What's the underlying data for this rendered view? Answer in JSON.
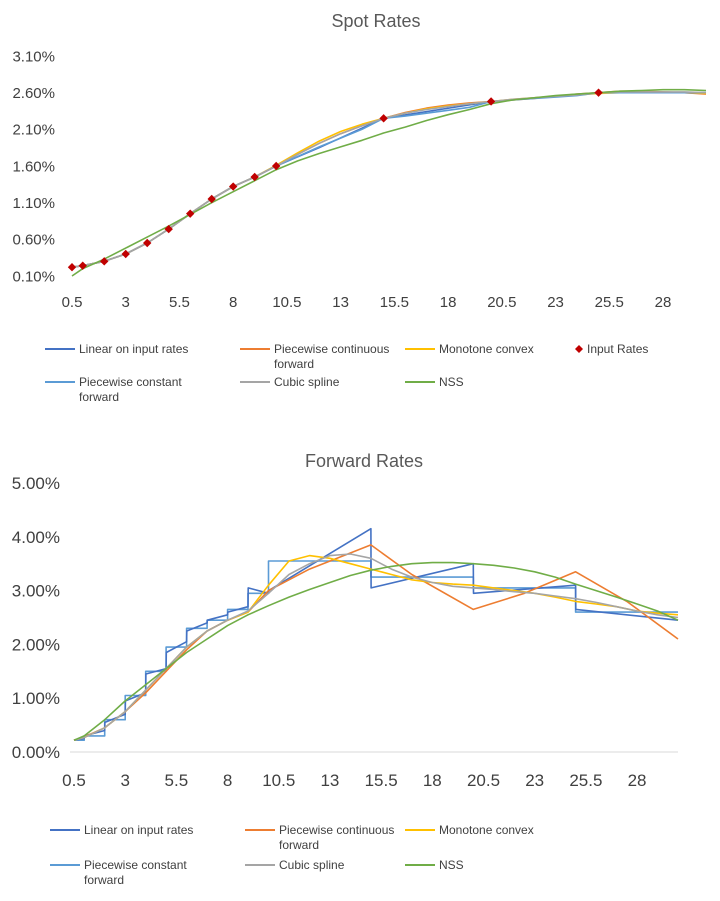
{
  "colors": {
    "linear": "#4472C4",
    "pcf": "#ED7D31",
    "monotone": "#FFC000",
    "input": "#C00000",
    "pconst": "#5B9BD5",
    "cubic": "#A5A5A5",
    "nss": "#70AD47"
  },
  "chart_data": [
    {
      "type": "line",
      "title": "Spot Rates",
      "x_tick_labels": [
        "0.5",
        "3",
        "5.5",
        "8",
        "10.5",
        "13",
        "15.5",
        "18",
        "20.5",
        "23",
        "25.5",
        "28"
      ],
      "y_tick_labels": [
        "0.10%",
        "0.60%",
        "1.10%",
        "1.60%",
        "2.10%",
        "2.60%",
        "3.10%"
      ],
      "xlim": [
        0.5,
        30
      ],
      "ylim": [
        0.1,
        3.1
      ],
      "legend": [
        {
          "key": "linear",
          "label": "Linear on input rates",
          "marker": "line"
        },
        {
          "key": "pcf",
          "label": "Piecewise continuous forward",
          "marker": "line"
        },
        {
          "key": "monotone",
          "label": "Monotone convex",
          "marker": "line"
        },
        {
          "key": "input",
          "label": "Input Rates",
          "marker": "diamond"
        },
        {
          "key": "pconst",
          "label": "Piecewise constant forward",
          "marker": "line"
        },
        {
          "key": "cubic",
          "label": "Cubic spline",
          "marker": "line"
        },
        {
          "key": "nss",
          "label": "NSS",
          "marker": "line"
        }
      ],
      "series": [
        {
          "key": "linear",
          "name": "Linear on input rates",
          "x": [
            0.5,
            1,
            2,
            3,
            4,
            5,
            6,
            7,
            8,
            9,
            10,
            12,
            15,
            20,
            25,
            30
          ],
          "y": [
            0.22,
            0.24,
            0.3,
            0.4,
            0.55,
            0.74,
            0.95,
            1.15,
            1.32,
            1.45,
            1.6,
            1.85,
            2.25,
            2.48,
            2.6,
            2.6
          ]
        },
        {
          "key": "pcf",
          "name": "Piecewise continuous forward",
          "x": [
            0.5,
            1,
            2,
            3,
            4,
            5,
            6,
            7,
            8,
            9,
            10,
            11,
            12,
            13,
            14,
            15,
            16,
            17,
            18,
            19,
            20,
            21,
            22,
            23,
            24,
            25,
            26,
            27,
            28,
            29,
            30
          ],
          "y": [
            0.22,
            0.24,
            0.3,
            0.4,
            0.55,
            0.74,
            0.95,
            1.15,
            1.32,
            1.45,
            1.6,
            1.76,
            1.91,
            2.04,
            2.15,
            2.25,
            2.33,
            2.39,
            2.43,
            2.46,
            2.48,
            2.5,
            2.52,
            2.55,
            2.58,
            2.6,
            2.62,
            2.62,
            2.61,
            2.6,
            2.58
          ]
        },
        {
          "key": "monotone",
          "name": "Monotone convex",
          "x": [
            0.5,
            1,
            2,
            3,
            4,
            5,
            6,
            7,
            8,
            9,
            10,
            11,
            12,
            13,
            14,
            15,
            16,
            17,
            18,
            19,
            20,
            21,
            22,
            23,
            24,
            25,
            26,
            27,
            28,
            29,
            30
          ],
          "y": [
            0.22,
            0.24,
            0.3,
            0.4,
            0.55,
            0.74,
            0.95,
            1.15,
            1.32,
            1.45,
            1.61,
            1.78,
            1.94,
            2.07,
            2.17,
            2.25,
            2.32,
            2.38,
            2.42,
            2.45,
            2.48,
            2.51,
            2.53,
            2.55,
            2.57,
            2.59,
            2.6,
            2.6,
            2.6,
            2.6,
            2.59
          ]
        },
        {
          "key": "pconst",
          "name": "Piecewise constant forward",
          "x": [
            0.5,
            1,
            2,
            3,
            4,
            5,
            6,
            7,
            8,
            9,
            10,
            11,
            12,
            13,
            14,
            15,
            16,
            17,
            18,
            19,
            20,
            21,
            22,
            23,
            24,
            25,
            26,
            27,
            28,
            29,
            30
          ],
          "y": [
            0.22,
            0.24,
            0.3,
            0.4,
            0.55,
            0.74,
            0.95,
            1.15,
            1.32,
            1.45,
            1.6,
            1.73,
            1.86,
            1.98,
            2.1,
            2.25,
            2.28,
            2.32,
            2.36,
            2.4,
            2.48,
            2.5,
            2.52,
            2.54,
            2.56,
            2.6,
            2.6,
            2.6,
            2.6,
            2.6,
            2.6
          ]
        },
        {
          "key": "cubic",
          "name": "Cubic spline",
          "x": [
            0.5,
            1,
            2,
            3,
            4,
            5,
            6,
            7,
            8,
            9,
            10,
            11,
            12,
            13,
            14,
            15,
            16,
            17,
            18,
            19,
            20,
            21,
            22,
            23,
            24,
            25,
            26,
            27,
            28,
            29,
            30
          ],
          "y": [
            0.22,
            0.24,
            0.3,
            0.4,
            0.55,
            0.74,
            0.95,
            1.15,
            1.32,
            1.45,
            1.6,
            1.76,
            1.91,
            2.04,
            2.15,
            2.25,
            2.32,
            2.37,
            2.41,
            2.45,
            2.48,
            2.51,
            2.53,
            2.55,
            2.57,
            2.6,
            2.61,
            2.61,
            2.61,
            2.61,
            2.6
          ]
        },
        {
          "key": "nss",
          "name": "NSS",
          "x": [
            0.5,
            1,
            2,
            3,
            4,
            5,
            6,
            7,
            8,
            9,
            10,
            11,
            12,
            13,
            14,
            15,
            16,
            17,
            18,
            19,
            20,
            21,
            22,
            23,
            24,
            25,
            26,
            27,
            28,
            29,
            30
          ],
          "y": [
            0.1,
            0.2,
            0.33,
            0.48,
            0.63,
            0.78,
            0.94,
            1.1,
            1.25,
            1.4,
            1.55,
            1.67,
            1.77,
            1.86,
            1.95,
            2.05,
            2.13,
            2.22,
            2.3,
            2.37,
            2.45,
            2.5,
            2.53,
            2.56,
            2.58,
            2.6,
            2.62,
            2.63,
            2.64,
            2.64,
            2.63
          ]
        }
      ],
      "points": {
        "key": "input",
        "name": "Input Rates",
        "x": [
          0.5,
          1,
          2,
          3,
          4,
          5,
          6,
          7,
          8,
          9,
          10,
          15,
          20,
          25
        ],
        "y": [
          0.22,
          0.24,
          0.3,
          0.4,
          0.55,
          0.74,
          0.95,
          1.15,
          1.32,
          1.45,
          1.6,
          2.25,
          2.48,
          2.6
        ]
      }
    },
    {
      "type": "line",
      "title": "Forward Rates",
      "x_tick_labels": [
        "0.5",
        "3",
        "5.5",
        "8",
        "10.5",
        "13",
        "15.5",
        "18",
        "20.5",
        "23",
        "25.5",
        "28"
      ],
      "y_tick_labels": [
        "0.00%",
        "1.00%",
        "2.00%",
        "3.00%",
        "4.00%",
        "5.00%"
      ],
      "xlim": [
        0.5,
        30
      ],
      "ylim": [
        0,
        5
      ],
      "legend": [
        {
          "key": "linear",
          "label": "Linear on input rates",
          "marker": "line"
        },
        {
          "key": "pcf",
          "label": "Piecewise continuous forward",
          "marker": "line"
        },
        {
          "key": "monotone",
          "label": "Monotone convex",
          "marker": "line"
        },
        {
          "key": "pconst",
          "label": "Piecewise constant forward",
          "marker": "line"
        },
        {
          "key": "cubic",
          "label": "Cubic spline",
          "marker": "line"
        },
        {
          "key": "nss",
          "label": "NSS",
          "marker": "line"
        }
      ],
      "series": [
        {
          "key": "pconst",
          "name": "Piecewise constant forward",
          "x": [
            0.5,
            1,
            1,
            2,
            2,
            3,
            3,
            4,
            4,
            5,
            5,
            6,
            6,
            7,
            7,
            8,
            8,
            9,
            9,
            10,
            10,
            15,
            15,
            20,
            20,
            25,
            25,
            30
          ],
          "y": [
            0.22,
            0.22,
            0.3,
            0.3,
            0.6,
            0.6,
            1.05,
            1.05,
            1.5,
            1.5,
            1.95,
            1.95,
            2.3,
            2.3,
            2.45,
            2.45,
            2.65,
            2.65,
            2.95,
            2.95,
            3.55,
            3.55,
            3.25,
            3.25,
            3.05,
            3.05,
            2.6,
            2.6
          ]
        },
        {
          "key": "linear",
          "name": "Linear on input rates",
          "x": [
            0.5,
            1,
            1.01,
            2,
            2.01,
            3,
            3.01,
            4,
            4.01,
            5,
            5.01,
            6,
            6.01,
            7,
            7.01,
            8,
            8.01,
            9,
            9.01,
            10,
            10.01,
            15,
            15.01,
            20,
            20.01,
            25,
            25.01,
            30
          ],
          "y": [
            0.22,
            0.25,
            0.3,
            0.4,
            0.55,
            0.7,
            0.95,
            1.1,
            1.45,
            1.55,
            1.85,
            2.05,
            2.25,
            2.4,
            2.45,
            2.55,
            2.6,
            2.7,
            3.05,
            2.95,
            3.0,
            4.15,
            3.05,
            3.5,
            2.95,
            3.1,
            2.65,
            2.45
          ]
        },
        {
          "key": "pcf",
          "name": "Piecewise continuous forward",
          "x": [
            0.5,
            1,
            2,
            3,
            4,
            5,
            6,
            7,
            8,
            9,
            10,
            12,
            15,
            17,
            20,
            22.5,
            25,
            27.5,
            30
          ],
          "y": [
            0.22,
            0.28,
            0.45,
            0.75,
            1.1,
            1.5,
            1.9,
            2.25,
            2.45,
            2.6,
            3.0,
            3.4,
            3.85,
            3.3,
            2.65,
            2.95,
            3.35,
            2.8,
            2.1
          ]
        },
        {
          "key": "monotone",
          "name": "Monotone convex",
          "x": [
            0.5,
            1,
            2,
            3,
            4,
            5,
            6,
            7,
            8,
            9,
            10,
            11,
            12,
            13,
            14,
            15,
            16,
            17,
            18,
            19,
            20,
            21,
            22,
            23,
            24,
            25,
            26,
            27,
            28,
            29,
            30
          ],
          "y": [
            0.22,
            0.27,
            0.45,
            0.75,
            1.15,
            1.55,
            1.95,
            2.25,
            2.45,
            2.6,
            3.1,
            3.55,
            3.65,
            3.6,
            3.5,
            3.4,
            3.3,
            3.2,
            3.15,
            3.12,
            3.1,
            3.05,
            3.0,
            2.95,
            2.88,
            2.8,
            2.75,
            2.7,
            2.62,
            2.58,
            2.55
          ]
        },
        {
          "key": "cubic",
          "name": "Cubic spline",
          "x": [
            0.5,
            1,
            2,
            3,
            4,
            5,
            6,
            7,
            8,
            9,
            10,
            11,
            12,
            13,
            14,
            15,
            16,
            17,
            18,
            19,
            20,
            21,
            22,
            23,
            24,
            25,
            26,
            27,
            28,
            29,
            30
          ],
          "y": [
            0.22,
            0.27,
            0.45,
            0.75,
            1.15,
            1.55,
            1.95,
            2.25,
            2.45,
            2.62,
            2.95,
            3.3,
            3.5,
            3.65,
            3.68,
            3.6,
            3.4,
            3.25,
            3.15,
            3.08,
            3.05,
            3.02,
            2.98,
            2.95,
            2.9,
            2.85,
            2.78,
            2.7,
            2.62,
            2.55,
            2.5
          ]
        },
        {
          "key": "nss",
          "name": "NSS",
          "x": [
            0.5,
            1,
            2,
            3,
            4,
            5,
            6,
            7,
            8,
            9,
            10,
            11,
            12,
            13,
            14,
            15,
            16,
            17,
            18,
            19,
            20,
            21,
            22,
            23,
            24,
            25,
            26,
            27,
            28,
            29,
            30
          ],
          "y": [
            0.22,
            0.3,
            0.6,
            0.95,
            1.25,
            1.55,
            1.85,
            2.1,
            2.35,
            2.55,
            2.72,
            2.88,
            3.02,
            3.15,
            3.28,
            3.38,
            3.45,
            3.5,
            3.52,
            3.52,
            3.5,
            3.47,
            3.42,
            3.35,
            3.25,
            3.12,
            3.0,
            2.88,
            2.75,
            2.62,
            2.45
          ]
        }
      ]
    }
  ]
}
